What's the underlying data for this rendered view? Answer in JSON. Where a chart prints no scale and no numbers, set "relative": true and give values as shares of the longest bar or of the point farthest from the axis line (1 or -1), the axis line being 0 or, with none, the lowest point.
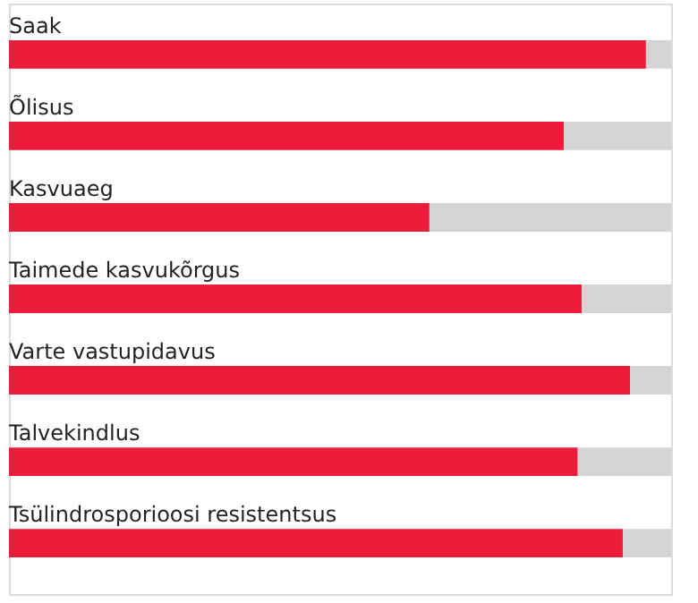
{
  "chart_data": {
    "type": "bar",
    "orientation": "horizontal",
    "stacked": true,
    "relative": true,
    "categories": [
      "Saak",
      "Õlisus",
      "Kasvuaeg",
      "Taimede kasvukõrgus",
      "Varte vastupidavus",
      "Talvekindlus",
      "Tsülindrosporioosi resistentsus"
    ],
    "series": [
      {
        "color": "#ee1c3b",
        "values": [
          0.962,
          0.838,
          0.635,
          0.865,
          0.938,
          0.859,
          0.927
        ]
      },
      {
        "color": "#d4d4d4",
        "values": [
          0.038,
          0.162,
          0.365,
          0.135,
          0.062,
          0.141,
          0.073
        ]
      }
    ]
  }
}
